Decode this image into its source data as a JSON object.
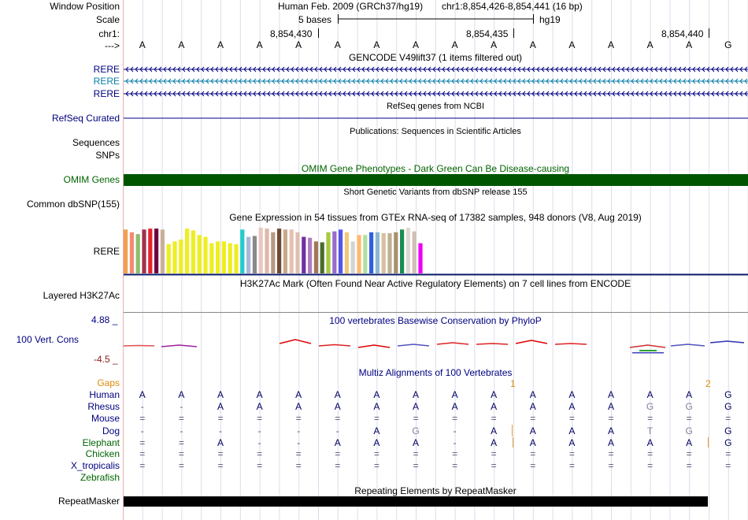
{
  "header": {
    "window_position_label": "Window Position",
    "scale_label": "Scale",
    "chrom_label": "chr1:",
    "arrow_label": "--->",
    "assembly": "Human Feb. 2009 (GRCh37/hg19)",
    "position": "chr1:8,854,426-8,854,441 (16 bp)",
    "scale_text": "5 bases",
    "db": "hg19",
    "ticks": [
      "8,854,430",
      "8,854,435",
      "8,854,440"
    ]
  },
  "sequence": [
    "A",
    "A",
    "A",
    "A",
    "A",
    "A",
    "A",
    "A",
    "A",
    "A",
    "A",
    "A",
    "A",
    "A",
    "A",
    "G"
  ],
  "gencode": {
    "title": "GENCODE V49lift37 (1 items filtered out)",
    "labels": [
      "RERE",
      "RERE",
      "RERE"
    ]
  },
  "refseq": {
    "title": "RefSeq genes from NCBI",
    "label": "RefSeq Curated"
  },
  "publications": {
    "title": "Publications: Sequences in Scientific Articles",
    "labels": [
      "Sequences",
      "SNPs"
    ]
  },
  "omim": {
    "title": "OMIM Gene Phenotypes - Dark Green Can Be Disease-causing",
    "label": "OMIM Genes"
  },
  "dbsnp": {
    "title": "Short Genetic Variants from dbSNP release 155",
    "label": "Common dbSNP(155)"
  },
  "gtex": {
    "title": "Gene Expression in 54 tissues from GTEx RNA-seq of 17382 samples, 948 donors (V8, Aug 2019)",
    "label": "RERE",
    "bars": [
      {
        "v": 0.96,
        "c": "#f0a150"
      },
      {
        "v": 0.9,
        "c": "#f58a72"
      },
      {
        "v": 0.86,
        "c": "#8cbd6e"
      },
      {
        "v": 0.96,
        "c": "#a03050"
      },
      {
        "v": 0.98,
        "c": "#e8222a"
      },
      {
        "v": 0.98,
        "c": "#700040"
      },
      {
        "v": 0.96,
        "c": "#c8b09a"
      },
      {
        "v": 0.64,
        "c": "#eeee22"
      },
      {
        "v": 0.7,
        "c": "#eeee22"
      },
      {
        "v": 0.74,
        "c": "#eeee22"
      },
      {
        "v": 0.98,
        "c": "#eeee22"
      },
      {
        "v": 0.94,
        "c": "#eeee22"
      },
      {
        "v": 0.84,
        "c": "#eeee22"
      },
      {
        "v": 0.8,
        "c": "#eeee22"
      },
      {
        "v": 0.66,
        "c": "#eeee22"
      },
      {
        "v": 0.7,
        "c": "#eeee22"
      },
      {
        "v": 0.7,
        "c": "#eeee22"
      },
      {
        "v": 0.66,
        "c": "#eeee22"
      },
      {
        "v": 0.64,
        "c": "#eeee22"
      },
      {
        "v": 0.96,
        "c": "#22cccc"
      },
      {
        "v": 0.8,
        "c": "#a8b8d8"
      },
      {
        "v": 0.82,
        "c": "#8a8a8a"
      },
      {
        "v": 1.0,
        "c": "#e8c8c0"
      },
      {
        "v": 0.98,
        "c": "#ddb8a8"
      },
      {
        "v": 0.9,
        "c": "#b89a82"
      },
      {
        "v": 0.98,
        "c": "#6e4a30"
      },
      {
        "v": 0.96,
        "c": "#c8a88c"
      },
      {
        "v": 0.96,
        "c": "#e8c0b0"
      },
      {
        "v": 0.9,
        "c": "#dcc0b0"
      },
      {
        "v": 0.8,
        "c": "#7030a0"
      },
      {
        "v": 0.78,
        "c": "#b07cc0"
      },
      {
        "v": 0.7,
        "c": "#a07858"
      },
      {
        "v": 0.68,
        "c": "#4b6b2a"
      },
      {
        "v": 0.9,
        "c": "#a8c840"
      },
      {
        "v": 0.92,
        "c": "#9a6acc"
      },
      {
        "v": 0.96,
        "c": "#5555ee"
      },
      {
        "v": 0.9,
        "c": "#f0c878"
      },
      {
        "v": 0.7,
        "c": "#d4d4d4"
      },
      {
        "v": 0.84,
        "c": "#ffb870"
      },
      {
        "v": 0.84,
        "c": "#b0e0a0"
      },
      {
        "v": 0.9,
        "c": "#3060e0"
      },
      {
        "v": 0.9,
        "c": "#8ab8d0"
      },
      {
        "v": 0.88,
        "c": "#d8c0a0"
      },
      {
        "v": 0.88,
        "c": "#c0b090"
      },
      {
        "v": 0.9,
        "c": "#a89070"
      },
      {
        "v": 0.96,
        "c": "#1a8c50"
      },
      {
        "v": 1.0,
        "c": "#e0d8d0"
      },
      {
        "v": 0.92,
        "c": "#d0c0b8"
      },
      {
        "v": 0.66,
        "c": "#f000f0"
      }
    ]
  },
  "h3k27ac": {
    "title": "H3K27Ac Mark (Often Found Near Active Regulatory Elements) on 7 cell lines from ENCODE",
    "label": "Layered H3K27Ac"
  },
  "phylop": {
    "title": "100 vertebrates Basewise Conservation by PhyloP",
    "label": "100 Vert. Cons",
    "max": "4.88 _",
    "min": "-4.5 _"
  },
  "multiz": {
    "title": "Multiz Alignments of 100 Vertebrates",
    "gaps_label": "Gaps",
    "gap_marks": [
      "1",
      "2"
    ],
    "species": [
      {
        "name": "Human",
        "row": [
          "A",
          "A",
          "A",
          "A",
          "A",
          "A",
          "A",
          "A",
          "A",
          "A",
          "A",
          "A",
          "A",
          "A",
          "A",
          "G"
        ]
      },
      {
        "name": "Rhesus",
        "row": [
          "-",
          "-",
          "A",
          "A",
          "A",
          "A",
          "A",
          "A",
          "A",
          "A",
          "A",
          "A",
          "A",
          "G",
          "G",
          "G"
        ]
      },
      {
        "name": "Mouse",
        "row": [
          "=",
          "=",
          "=",
          "=",
          "=",
          "=",
          "=",
          "=",
          "=",
          "=",
          "=",
          "=",
          "=",
          "=",
          "=",
          "="
        ]
      },
      {
        "name": "Dog",
        "row": [
          "-",
          "-",
          "-",
          "-",
          "-",
          "-",
          "A",
          "G",
          "-",
          "A",
          "A",
          "A",
          "A",
          "T",
          "G",
          "G"
        ]
      },
      {
        "name": "Elephant",
        "row": [
          "=",
          "=",
          "A",
          "-",
          "-",
          "A",
          "A",
          "A",
          "-",
          "A",
          "A",
          "A",
          "A",
          "A",
          "A",
          "G"
        ]
      },
      {
        "name": "Chicken",
        "row": [
          "=",
          "=",
          "=",
          "=",
          "=",
          "=",
          "=",
          "=",
          "=",
          "=",
          "=",
          "=",
          "=",
          "=",
          "=",
          "="
        ]
      },
      {
        "name": "X_tropicalis",
        "row": [
          "=",
          "=",
          "=",
          "=",
          "=",
          "=",
          "=",
          "=",
          "=",
          "=",
          "=",
          "=",
          "=",
          "=",
          "=",
          "="
        ]
      },
      {
        "name": "Zebrafish",
        "row": [
          "",
          "",
          "",
          "",
          "",
          "",
          "",
          "",
          "",
          "",
          "",
          "",
          "",
          "",
          "",
          ""
        ]
      }
    ]
  },
  "repeatmasker": {
    "title": "Repeating Elements by RepeatMasker",
    "label": "RepeatMasker"
  }
}
